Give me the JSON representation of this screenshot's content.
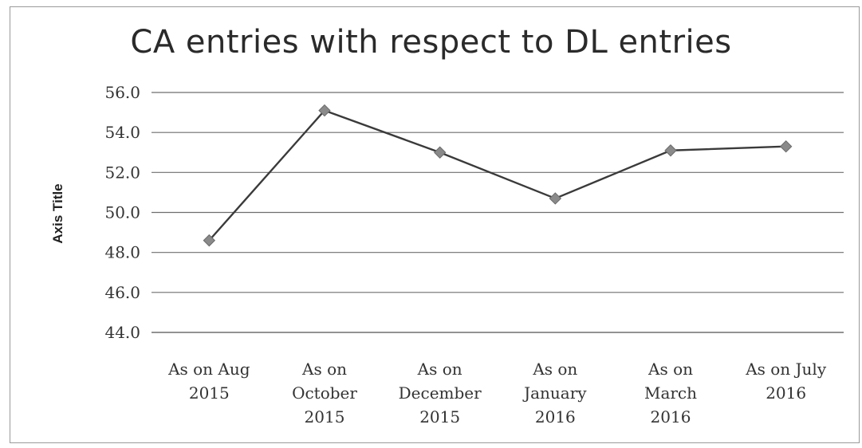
{
  "chart_data": {
    "type": "line",
    "title": "CA entries with respect to DL entries",
    "ylabel": "Axis Title",
    "xlabel": "",
    "ylim": [
      44.0,
      56.0
    ],
    "y_ticks": [
      "44.0",
      "46.0",
      "48.0",
      "50.0",
      "52.0",
      "54.0",
      "56.0"
    ],
    "categories": [
      [
        "As on Aug",
        "2015"
      ],
      [
        "As on",
        "October",
        "2015"
      ],
      [
        "As on",
        "December",
        "2015"
      ],
      [
        "As on",
        "January",
        "2016"
      ],
      [
        "As on",
        "March",
        "2016"
      ],
      [
        "As on July",
        "2016"
      ]
    ],
    "series": [
      {
        "values": [
          48.6,
          55.1,
          53.0,
          50.7,
          53.1,
          53.3
        ]
      }
    ],
    "grid": true,
    "colors": {
      "line": "#3a3a3a",
      "marker": "#8a8a8a",
      "grid": "#6e6e6e"
    }
  }
}
